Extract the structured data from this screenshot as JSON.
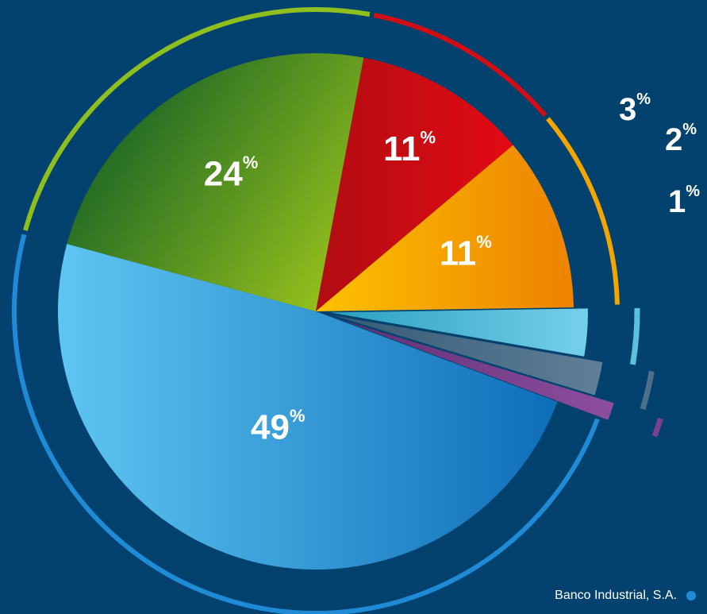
{
  "chart_data": {
    "type": "pie",
    "title": "",
    "slices": [
      {
        "label": "Banco Industrial, S.A.",
        "value": 49,
        "value_label": "49%",
        "color": "#1f8ad6",
        "gradient": [
          "#5fc6f2",
          "#0e6db8"
        ]
      },
      {
        "label": "",
        "value": 24,
        "value_label": "24%",
        "color": "#8fbf1f",
        "gradient": [
          "#0b5a26",
          "#98c21c"
        ]
      },
      {
        "label": "",
        "value": 11,
        "value_label": "11%",
        "color": "#d10d15",
        "gradient": [
          "#b00d12",
          "#e30a14"
        ]
      },
      {
        "label": "",
        "value": 11,
        "value_label": "11%",
        "color": "#f4a500",
        "gradient": [
          "#fcc100",
          "#ee8200"
        ]
      },
      {
        "label": "",
        "value": 3,
        "value_label": "3%",
        "color": "#5bc2de",
        "gradient": [
          "#2a9fc0",
          "#75d0ea"
        ]
      },
      {
        "label": "",
        "value": 2,
        "value_label": "2%",
        "color": "#4e6f8a",
        "gradient": [
          "#365a75",
          "#607f98"
        ]
      },
      {
        "label": "",
        "value": 1,
        "value_label": "1%",
        "color": "#7a3f8e",
        "gradient": [
          "#5e2f72",
          "#8e4ea0"
        ]
      }
    ],
    "legend": [
      {
        "label": "Banco Industrial, S.A.",
        "color": "#1f8ad6"
      }
    ],
    "legend_position": "bottom-right"
  }
}
